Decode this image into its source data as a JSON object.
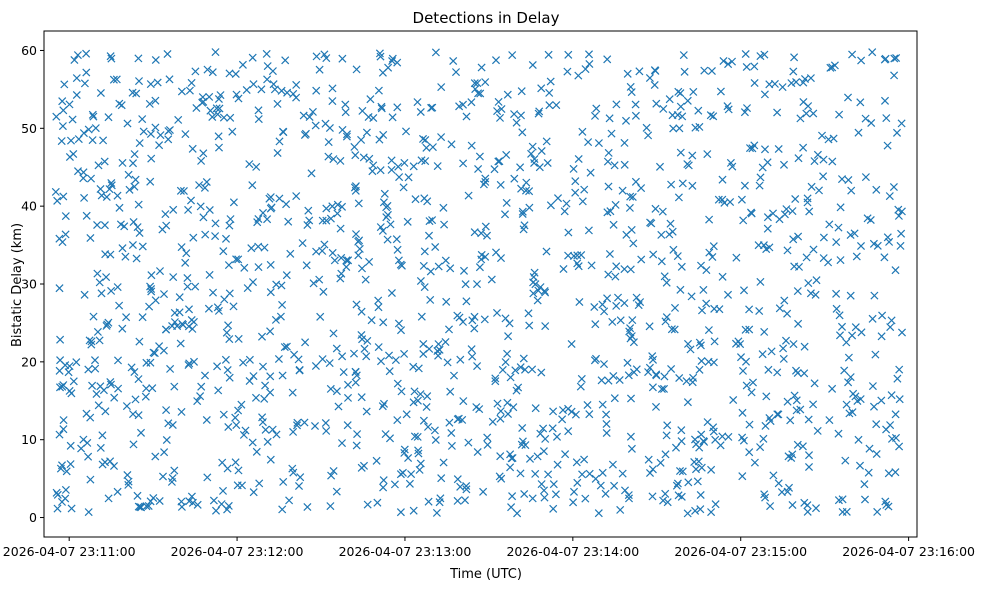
{
  "chart_data": {
    "type": "scatter",
    "title": "Detections in Delay",
    "xlabel": "Time (UTC)",
    "ylabel": "Bistatic Delay (km)",
    "marker": "x",
    "marker_color": "#1f77b4",
    "xlim": [
      "2026-04-07 23:10:51",
      "2026-04-07 23:16:03"
    ],
    "ylim": [
      -2.5,
      62.5
    ],
    "x_ticks": [
      "2026-04-07 23:11:00",
      "2026-04-07 23:12:00",
      "2026-04-07 23:13:00",
      "2026-04-07 23:14:00",
      "2026-04-07 23:15:00",
      "2026-04-07 23:16:00"
    ],
    "y_ticks": [
      0,
      10,
      20,
      30,
      40,
      50,
      60
    ],
    "x_range": [
      "2026-04-07 23:10:55",
      "2026-04-07 23:15:58"
    ],
    "y_range": [
      0.5,
      59.8
    ],
    "n_points": 1500,
    "grid": false,
    "legend": "none",
    "points_note": "dense, roughly uniform scatter of ~1500 detections over the full time window and delay range"
  }
}
